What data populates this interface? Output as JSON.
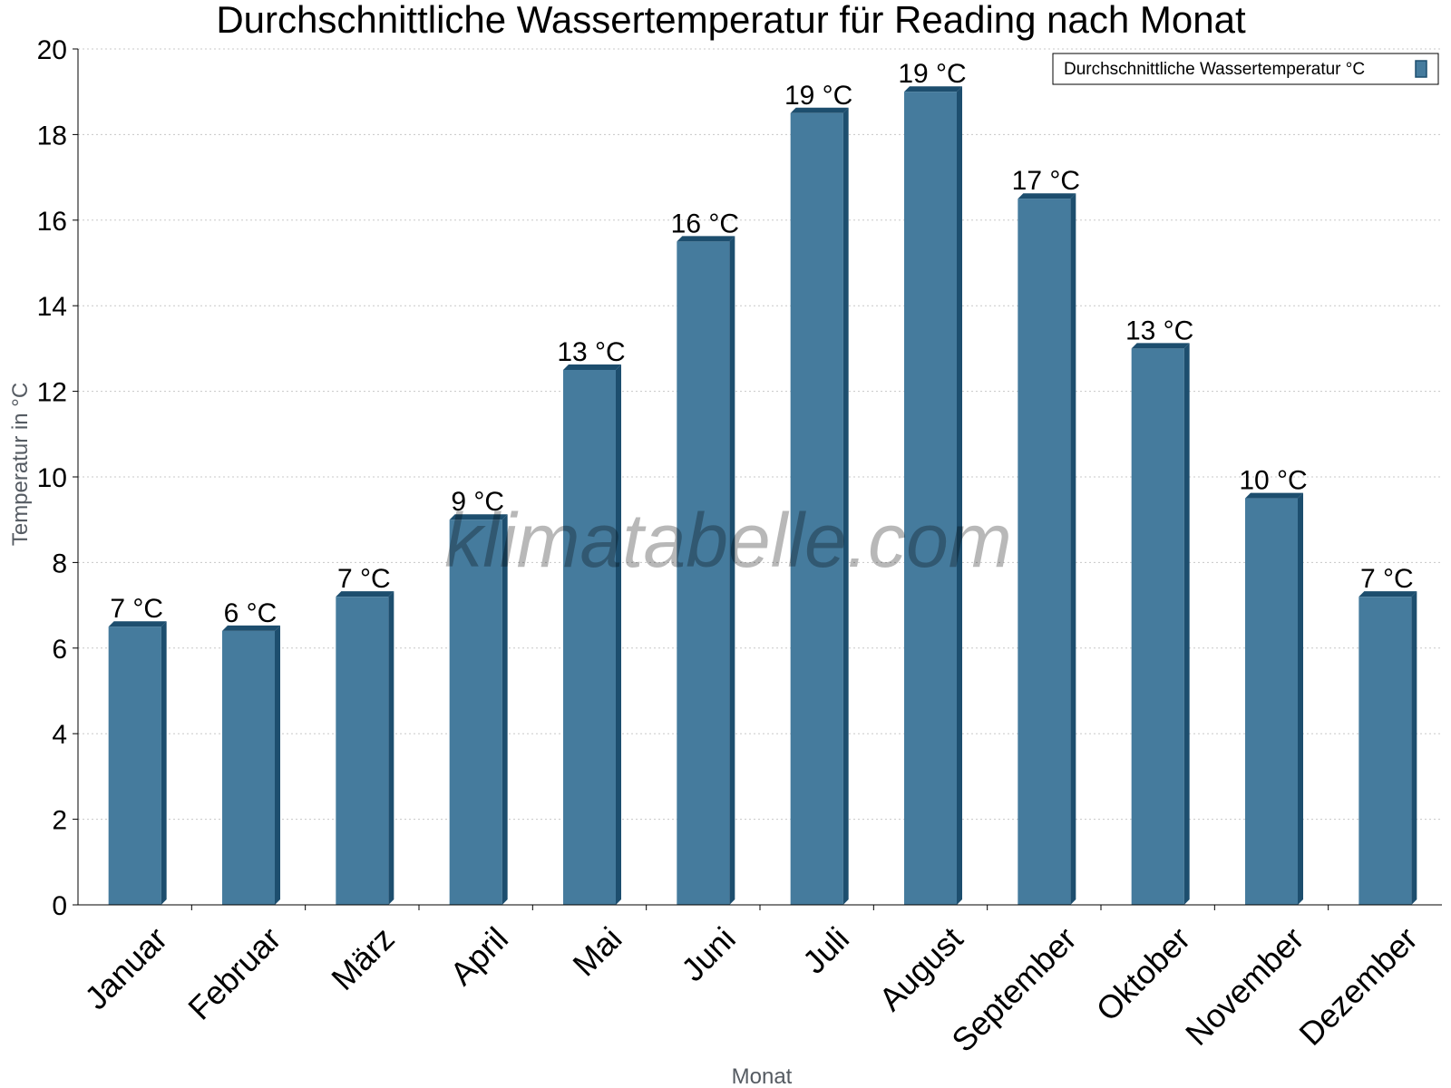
{
  "chart_data": {
    "type": "bar",
    "title": "Durchschnittliche Wassertemperatur für Reading nach Monat",
    "xlabel": "Monat",
    "ylabel": "Temperatur in °C",
    "categories": [
      "Januar",
      "Februar",
      "März",
      "April",
      "Mai",
      "Juni",
      "Juli",
      "August",
      "September",
      "Oktober",
      "November",
      "Dezember"
    ],
    "series": [
      {
        "name": "Durchschnittliche Wassertemperatur °C",
        "values": [
          6.5,
          6.4,
          7.2,
          9.0,
          12.5,
          15.5,
          18.5,
          19.0,
          16.5,
          13.0,
          9.5,
          7.2
        ],
        "data_labels": [
          "7 °C",
          "6 °C",
          "7 °C",
          "9 °C",
          "13 °C",
          "16 °C",
          "19 °C",
          "19 °C",
          "17 °C",
          "13 °C",
          "10 °C",
          "7 °C"
        ],
        "color": "#457b9d",
        "edge_color": "#1d4e6e"
      }
    ],
    "ylim": [
      0,
      20
    ],
    "yticks": [
      0,
      2,
      4,
      6,
      8,
      10,
      12,
      14,
      16,
      18,
      20
    ],
    "grid": true,
    "legend_position": "top-right"
  },
  "watermark": "klimatabelle.com"
}
